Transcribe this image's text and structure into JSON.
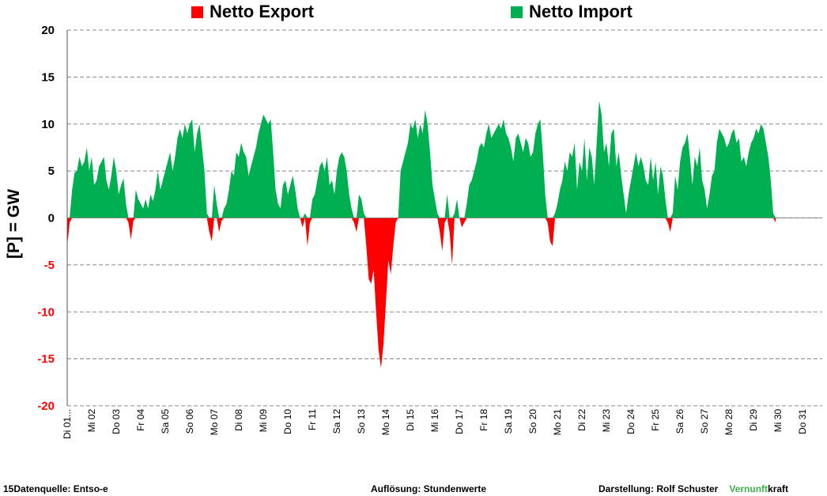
{
  "legend": {
    "export_label": "Netto Export",
    "import_label": "Netto Import"
  },
  "footer": {
    "source": "15Datenquelle: Entso-e",
    "resolution": "Auflösung: Stundenwerte",
    "credit": "Darstellung: Rolf Schuster",
    "brand_a": "Vernunft",
    "brand_b": "kraft"
  },
  "colors": {
    "export": "#ff0000",
    "import": "#00b050",
    "grid": "#888888",
    "negative_tick": "#ff0000"
  },
  "chart_data": {
    "type": "area",
    "ylabel": "[P] = GW",
    "ylim": [
      -20,
      20
    ],
    "yticks": [
      20,
      15,
      10,
      5,
      0,
      -5,
      -10,
      -15,
      -20
    ],
    "grid": "horizontal dashed",
    "legend_position": "top",
    "xlabels": [
      "Di 01...",
      "Mi 02",
      "Do 03",
      "Fr 04",
      "Sa 05",
      "So 06",
      "Mo 07",
      "Di 08",
      "Mi 09",
      "Do 10",
      "Fr 11",
      "Sa 12",
      "So 13",
      "Mo 14",
      "Di 15",
      "Mi 16",
      "Do 17",
      "Fr 18",
      "Sa 19",
      "So 20",
      "Mo 21",
      "Di 22",
      "Mi 23",
      "Do 24",
      "Fr 25",
      "Sa 26",
      "So 27",
      "Mo 28",
      "Di 29",
      "Mi 30",
      "Do 31"
    ],
    "x_unit": "day of month (positive = Netto Import, negative = Netto Export)",
    "series": [
      {
        "name": "Netto Import / Netto Export",
        "points": [
          [
            1.0,
            -3.0
          ],
          [
            1.1,
            -0.5
          ],
          [
            1.2,
            3.0
          ],
          [
            1.3,
            4.8
          ],
          [
            1.4,
            5.0
          ],
          [
            1.5,
            6.5
          ],
          [
            1.6,
            5.5
          ],
          [
            1.7,
            6.0
          ],
          [
            1.8,
            7.5
          ],
          [
            1.9,
            5.0
          ],
          [
            2.0,
            6.5
          ],
          [
            2.1,
            3.5
          ],
          [
            2.2,
            4.0
          ],
          [
            2.3,
            5.5
          ],
          [
            2.4,
            6.0
          ],
          [
            2.5,
            6.5
          ],
          [
            2.6,
            4.0
          ],
          [
            2.7,
            3.0
          ],
          [
            2.8,
            4.5
          ],
          [
            2.9,
            6.5
          ],
          [
            3.0,
            5.0
          ],
          [
            3.1,
            2.5
          ],
          [
            3.2,
            3.5
          ],
          [
            3.3,
            4.2
          ],
          [
            3.4,
            1.5
          ],
          [
            3.5,
            -0.5
          ],
          [
            3.6,
            -2.3
          ],
          [
            3.7,
            -0.3
          ],
          [
            3.8,
            3.0
          ],
          [
            3.9,
            2.0
          ],
          [
            4.0,
            1.5
          ],
          [
            4.1,
            1.0
          ],
          [
            4.2,
            2.0
          ],
          [
            4.3,
            1.0
          ],
          [
            4.4,
            2.5
          ],
          [
            4.5,
            1.8
          ],
          [
            4.6,
            3.0
          ],
          [
            4.7,
            5.0
          ],
          [
            4.8,
            3.0
          ],
          [
            4.9,
            4.0
          ],
          [
            5.0,
            5.0
          ],
          [
            5.1,
            6.0
          ],
          [
            5.2,
            7.0
          ],
          [
            5.3,
            5.0
          ],
          [
            5.4,
            6.5
          ],
          [
            5.5,
            8.5
          ],
          [
            5.6,
            9.5
          ],
          [
            5.7,
            8.5
          ],
          [
            5.8,
            10.0
          ],
          [
            5.9,
            9.0
          ],
          [
            6.0,
            10.0
          ],
          [
            6.1,
            10.5
          ],
          [
            6.2,
            7.0
          ],
          [
            6.3,
            9.0
          ],
          [
            6.4,
            10.0
          ],
          [
            6.5,
            7.5
          ],
          [
            6.6,
            5.0
          ],
          [
            6.7,
            0.5
          ],
          [
            6.8,
            -1.5
          ],
          [
            6.9,
            -2.5
          ],
          [
            7.0,
            3.5
          ],
          [
            7.1,
            1.5
          ],
          [
            7.2,
            -1.5
          ],
          [
            7.3,
            -0.3
          ],
          [
            7.4,
            1.0
          ],
          [
            7.5,
            1.5
          ],
          [
            7.6,
            3.0
          ],
          [
            7.7,
            5.0
          ],
          [
            7.8,
            4.5
          ],
          [
            7.9,
            7.0
          ],
          [
            8.0,
            6.5
          ],
          [
            8.1,
            8.0
          ],
          [
            8.2,
            7.0
          ],
          [
            8.3,
            6.5
          ],
          [
            8.4,
            4.5
          ],
          [
            8.5,
            5.5
          ],
          [
            8.6,
            6.5
          ],
          [
            8.7,
            7.5
          ],
          [
            8.8,
            9.0
          ],
          [
            8.9,
            10.0
          ],
          [
            9.0,
            11.0
          ],
          [
            9.1,
            10.5
          ],
          [
            9.2,
            10.0
          ],
          [
            9.3,
            10.5
          ],
          [
            9.4,
            7.0
          ],
          [
            9.5,
            3.0
          ],
          [
            9.6,
            1.5
          ],
          [
            9.7,
            1.0
          ],
          [
            9.8,
            3.5
          ],
          [
            9.9,
            4.0
          ],
          [
            10.0,
            2.5
          ],
          [
            10.1,
            3.5
          ],
          [
            10.2,
            4.5
          ],
          [
            10.3,
            3.0
          ],
          [
            10.4,
            1.0
          ],
          [
            10.5,
            0.0
          ],
          [
            10.6,
            -1.0
          ],
          [
            10.7,
            0.5
          ],
          [
            10.8,
            -3.0
          ],
          [
            10.9,
            -0.5
          ],
          [
            11.0,
            2.0
          ],
          [
            11.1,
            2.5
          ],
          [
            11.2,
            4.0
          ],
          [
            11.3,
            5.5
          ],
          [
            11.4,
            6.0
          ],
          [
            11.5,
            5.0
          ],
          [
            11.6,
            6.5
          ],
          [
            11.7,
            3.5
          ],
          [
            11.8,
            4.0
          ],
          [
            11.9,
            2.5
          ],
          [
            12.0,
            5.0
          ],
          [
            12.1,
            6.5
          ],
          [
            12.2,
            7.0
          ],
          [
            12.3,
            6.5
          ],
          [
            12.4,
            5.0
          ],
          [
            12.5,
            2.5
          ],
          [
            12.6,
            1.0
          ],
          [
            12.7,
            -0.5
          ],
          [
            12.8,
            -1.5
          ],
          [
            12.9,
            2.5
          ],
          [
            13.0,
            2.0
          ],
          [
            13.1,
            0.5
          ],
          [
            13.2,
            -3.0
          ],
          [
            13.3,
            -6.5
          ],
          [
            13.4,
            -7.0
          ],
          [
            13.5,
            -5.5
          ],
          [
            13.6,
            -10.0
          ],
          [
            13.7,
            -14.0
          ],
          [
            13.8,
            -16.0
          ],
          [
            13.9,
            -13.5
          ],
          [
            14.0,
            -9.0
          ],
          [
            14.1,
            -4.5
          ],
          [
            14.2,
            -6.0
          ],
          [
            14.3,
            -3.0
          ],
          [
            14.4,
            -0.5
          ],
          [
            14.5,
            0.0
          ],
          [
            14.6,
            5.0
          ],
          [
            14.7,
            6.0
          ],
          [
            14.8,
            7.0
          ],
          [
            14.9,
            8.0
          ],
          [
            15.0,
            10.0
          ],
          [
            15.1,
            9.5
          ],
          [
            15.2,
            10.5
          ],
          [
            15.3,
            8.5
          ],
          [
            15.4,
            10.0
          ],
          [
            15.5,
            9.0
          ],
          [
            15.6,
            11.5
          ],
          [
            15.7,
            10.0
          ],
          [
            15.8,
            7.0
          ],
          [
            15.9,
            3.5
          ],
          [
            16.0,
            2.0
          ],
          [
            16.1,
            0.5
          ],
          [
            16.2,
            -1.5
          ],
          [
            16.3,
            -3.5
          ],
          [
            16.4,
            -0.5
          ],
          [
            16.5,
            2.5
          ],
          [
            16.6,
            -1.5
          ],
          [
            16.7,
            -5.0
          ],
          [
            16.8,
            0.5
          ],
          [
            16.9,
            2.0
          ],
          [
            17.0,
            0.0
          ],
          [
            17.1,
            -1.0
          ],
          [
            17.2,
            -0.5
          ],
          [
            17.3,
            1.5
          ],
          [
            17.4,
            3.5
          ],
          [
            17.5,
            4.0
          ],
          [
            17.6,
            5.0
          ],
          [
            17.7,
            6.0
          ],
          [
            17.8,
            7.5
          ],
          [
            17.9,
            8.0
          ],
          [
            18.0,
            7.5
          ],
          [
            18.1,
            9.0
          ],
          [
            18.2,
            10.0
          ],
          [
            18.3,
            8.5
          ],
          [
            18.4,
            9.0
          ],
          [
            18.5,
            9.5
          ],
          [
            18.6,
            10.0
          ],
          [
            18.7,
            9.5
          ],
          [
            18.8,
            10.5
          ],
          [
            18.9,
            9.0
          ],
          [
            19.0,
            8.5
          ],
          [
            19.1,
            7.5
          ],
          [
            19.2,
            6.0
          ],
          [
            19.3,
            8.5
          ],
          [
            19.4,
            9.0
          ],
          [
            19.5,
            8.0
          ],
          [
            19.6,
            7.0
          ],
          [
            19.7,
            8.5
          ],
          [
            19.8,
            8.0
          ],
          [
            19.9,
            6.5
          ],
          [
            20.0,
            7.0
          ],
          [
            20.1,
            9.0
          ],
          [
            20.2,
            10.0
          ],
          [
            20.3,
            10.5
          ],
          [
            20.4,
            7.0
          ],
          [
            20.5,
            2.5
          ],
          [
            20.6,
            -0.5
          ],
          [
            20.7,
            -2.5
          ],
          [
            20.8,
            -3.0
          ],
          [
            20.9,
            0.5
          ],
          [
            21.0,
            1.5
          ],
          [
            21.1,
            3.0
          ],
          [
            21.2,
            4.0
          ],
          [
            21.3,
            6.0
          ],
          [
            21.4,
            5.0
          ],
          [
            21.5,
            7.0
          ],
          [
            21.6,
            6.5
          ],
          [
            21.7,
            8.0
          ],
          [
            21.8,
            3.0
          ],
          [
            21.9,
            6.0
          ],
          [
            22.0,
            5.0
          ],
          [
            22.1,
            8.5
          ],
          [
            22.2,
            4.0
          ],
          [
            22.3,
            7.5
          ],
          [
            22.4,
            6.5
          ],
          [
            22.5,
            3.5
          ],
          [
            22.6,
            8.0
          ],
          [
            22.7,
            12.5
          ],
          [
            22.8,
            11.0
          ],
          [
            22.9,
            7.0
          ],
          [
            23.0,
            8.0
          ],
          [
            23.1,
            5.5
          ],
          [
            23.2,
            9.0
          ],
          [
            23.3,
            9.5
          ],
          [
            23.4,
            5.5
          ],
          [
            23.5,
            7.0
          ],
          [
            23.6,
            4.5
          ],
          [
            23.7,
            2.5
          ],
          [
            23.8,
            0.5
          ],
          [
            23.9,
            2.5
          ],
          [
            24.0,
            4.0
          ],
          [
            24.1,
            5.5
          ],
          [
            24.2,
            7.0
          ],
          [
            24.3,
            5.5
          ],
          [
            24.4,
            6.5
          ],
          [
            24.5,
            5.5
          ],
          [
            24.6,
            4.0
          ],
          [
            24.7,
            3.5
          ],
          [
            24.8,
            6.5
          ],
          [
            24.9,
            4.0
          ],
          [
            25.0,
            6.0
          ],
          [
            25.1,
            2.5
          ],
          [
            25.2,
            5.5
          ],
          [
            25.3,
            4.5
          ],
          [
            25.4,
            2.0
          ],
          [
            25.5,
            -0.5
          ],
          [
            25.6,
            -1.5
          ],
          [
            25.7,
            0.5
          ],
          [
            25.8,
            4.5
          ],
          [
            25.9,
            3.0
          ],
          [
            26.0,
            6.0
          ],
          [
            26.1,
            7.5
          ],
          [
            26.2,
            8.0
          ],
          [
            26.3,
            9.0
          ],
          [
            26.4,
            6.5
          ],
          [
            26.5,
            3.5
          ],
          [
            26.6,
            6.5
          ],
          [
            26.7,
            5.5
          ],
          [
            26.8,
            7.5
          ],
          [
            26.9,
            4.0
          ],
          [
            27.0,
            3.0
          ],
          [
            27.1,
            1.0
          ],
          [
            27.2,
            2.5
          ],
          [
            27.3,
            4.5
          ],
          [
            27.4,
            5.0
          ],
          [
            27.5,
            8.0
          ],
          [
            27.6,
            9.5
          ],
          [
            27.7,
            9.0
          ],
          [
            27.8,
            8.5
          ],
          [
            27.9,
            7.5
          ],
          [
            28.0,
            8.0
          ],
          [
            28.1,
            9.0
          ],
          [
            28.2,
            9.5
          ],
          [
            28.3,
            8.0
          ],
          [
            28.4,
            8.5
          ],
          [
            28.5,
            6.0
          ],
          [
            28.6,
            6.5
          ],
          [
            28.7,
            5.5
          ],
          [
            28.8,
            7.0
          ],
          [
            28.9,
            8.0
          ],
          [
            29.0,
            8.5
          ],
          [
            29.1,
            9.5
          ],
          [
            29.2,
            9.0
          ],
          [
            29.3,
            10.0
          ],
          [
            29.4,
            9.5
          ],
          [
            29.5,
            8.0
          ],
          [
            29.6,
            6.5
          ],
          [
            29.7,
            4.0
          ],
          [
            29.8,
            0.5
          ],
          [
            29.9,
            -0.5
          ]
        ]
      }
    ]
  }
}
